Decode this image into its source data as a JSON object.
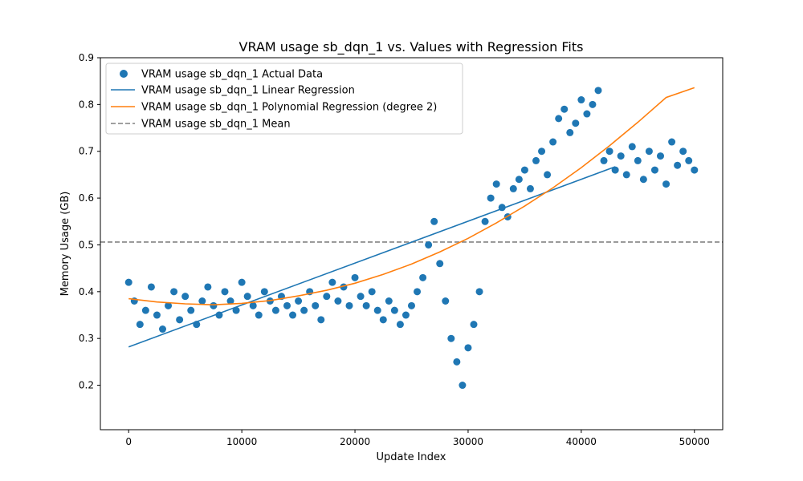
{
  "chart_data": {
    "type": "scatter",
    "title": "VRAM usage sb_dqn_1 vs. Values with Regression Fits",
    "xlabel": "Update Index",
    "ylabel": "Memory Usage (GB)",
    "xlim": [
      -2500,
      52500
    ],
    "ylim": [
      0.105,
      0.9
    ],
    "xticks": [
      0,
      10000,
      20000,
      30000,
      40000,
      50000
    ],
    "yticks": [
      0.2,
      0.3,
      0.4,
      0.5,
      0.6,
      0.7,
      0.8,
      0.9
    ],
    "grid": false,
    "legend_position": "top-left",
    "colors": {
      "actual": "#1f77b4",
      "linear": "#1f77b4",
      "poly": "#ff7f0e",
      "mean": "#808080"
    },
    "series": [
      {
        "name": "VRAM usage sb_dqn_1 Actual Data",
        "kind": "scatter",
        "x": [
          0,
          500,
          1000,
          1500,
          2000,
          2500,
          3000,
          3500,
          4000,
          4500,
          5000,
          5500,
          6000,
          6500,
          7000,
          7500,
          8000,
          8500,
          9000,
          9500,
          10000,
          10500,
          11000,
          11500,
          12000,
          12500,
          13000,
          13500,
          14000,
          14500,
          15000,
          15500,
          16000,
          16500,
          17000,
          17500,
          18000,
          18500,
          19000,
          19500,
          20000,
          20500,
          21000,
          21500,
          22000,
          22500,
          23000,
          23500,
          24000,
          24500,
          25000,
          25500,
          26000,
          26500,
          27000,
          27500,
          28000,
          28500,
          29000,
          29500,
          30000,
          30500,
          31000,
          31500,
          32000,
          32500,
          33000,
          33500,
          34000,
          34500,
          35000,
          35500,
          36000,
          36500,
          37000,
          37500,
          38000,
          38500,
          39000,
          39500,
          40000,
          40500,
          41000,
          41500,
          42000,
          42500,
          43000,
          43500,
          44000,
          44500,
          45000,
          45500,
          46000,
          46500,
          47000,
          47500,
          48000,
          48500,
          49000,
          49500,
          50000
        ],
        "y": [
          0.42,
          0.38,
          0.33,
          0.36,
          0.41,
          0.35,
          0.32,
          0.37,
          0.4,
          0.34,
          0.39,
          0.36,
          0.33,
          0.38,
          0.41,
          0.37,
          0.35,
          0.4,
          0.38,
          0.36,
          0.42,
          0.39,
          0.37,
          0.35,
          0.4,
          0.38,
          0.36,
          0.39,
          0.37,
          0.35,
          0.38,
          0.36,
          0.4,
          0.37,
          0.34,
          0.39,
          0.42,
          0.38,
          0.41,
          0.37,
          0.43,
          0.39,
          0.37,
          0.4,
          0.36,
          0.34,
          0.38,
          0.36,
          0.33,
          0.35,
          0.37,
          0.4,
          0.43,
          0.5,
          0.55,
          0.46,
          0.38,
          0.3,
          0.25,
          0.2,
          0.28,
          0.33,
          0.4,
          0.55,
          0.6,
          0.63,
          0.58,
          0.56,
          0.62,
          0.64,
          0.66,
          0.62,
          0.68,
          0.7,
          0.65,
          0.72,
          0.77,
          0.79,
          0.74,
          0.76,
          0.81,
          0.78,
          0.8,
          0.83,
          0.68,
          0.7,
          0.66,
          0.69,
          0.65,
          0.71,
          0.68,
          0.64,
          0.7,
          0.66,
          0.69,
          0.63,
          0.72,
          0.67,
          0.7,
          0.68,
          0.66
        ]
      },
      {
        "name": "VRAM usage sb_dqn_1 Linear Regression",
        "kind": "line",
        "x": [
          0,
          43000
        ],
        "y": [
          0.282,
          0.667
        ]
      },
      {
        "name": "VRAM usage sb_dqn_1 Polynomial Regression (degree 2)",
        "kind": "line",
        "x": [
          0,
          2500,
          5000,
          7500,
          10000,
          12500,
          15000,
          17500,
          20000,
          22500,
          25000,
          27500,
          30000,
          32500,
          35000,
          37500,
          40000,
          42500,
          45000,
          47500,
          50000
        ],
        "y": [
          0.385,
          0.378,
          0.374,
          0.372,
          0.375,
          0.381,
          0.391,
          0.403,
          0.418,
          0.437,
          0.459,
          0.485,
          0.514,
          0.547,
          0.583,
          0.622,
          0.665,
          0.712,
          0.762,
          0.815,
          0.836
        ]
      },
      {
        "name": "VRAM usage sb_dqn_1 Mean",
        "kind": "hline",
        "y": 0.506
      }
    ]
  }
}
